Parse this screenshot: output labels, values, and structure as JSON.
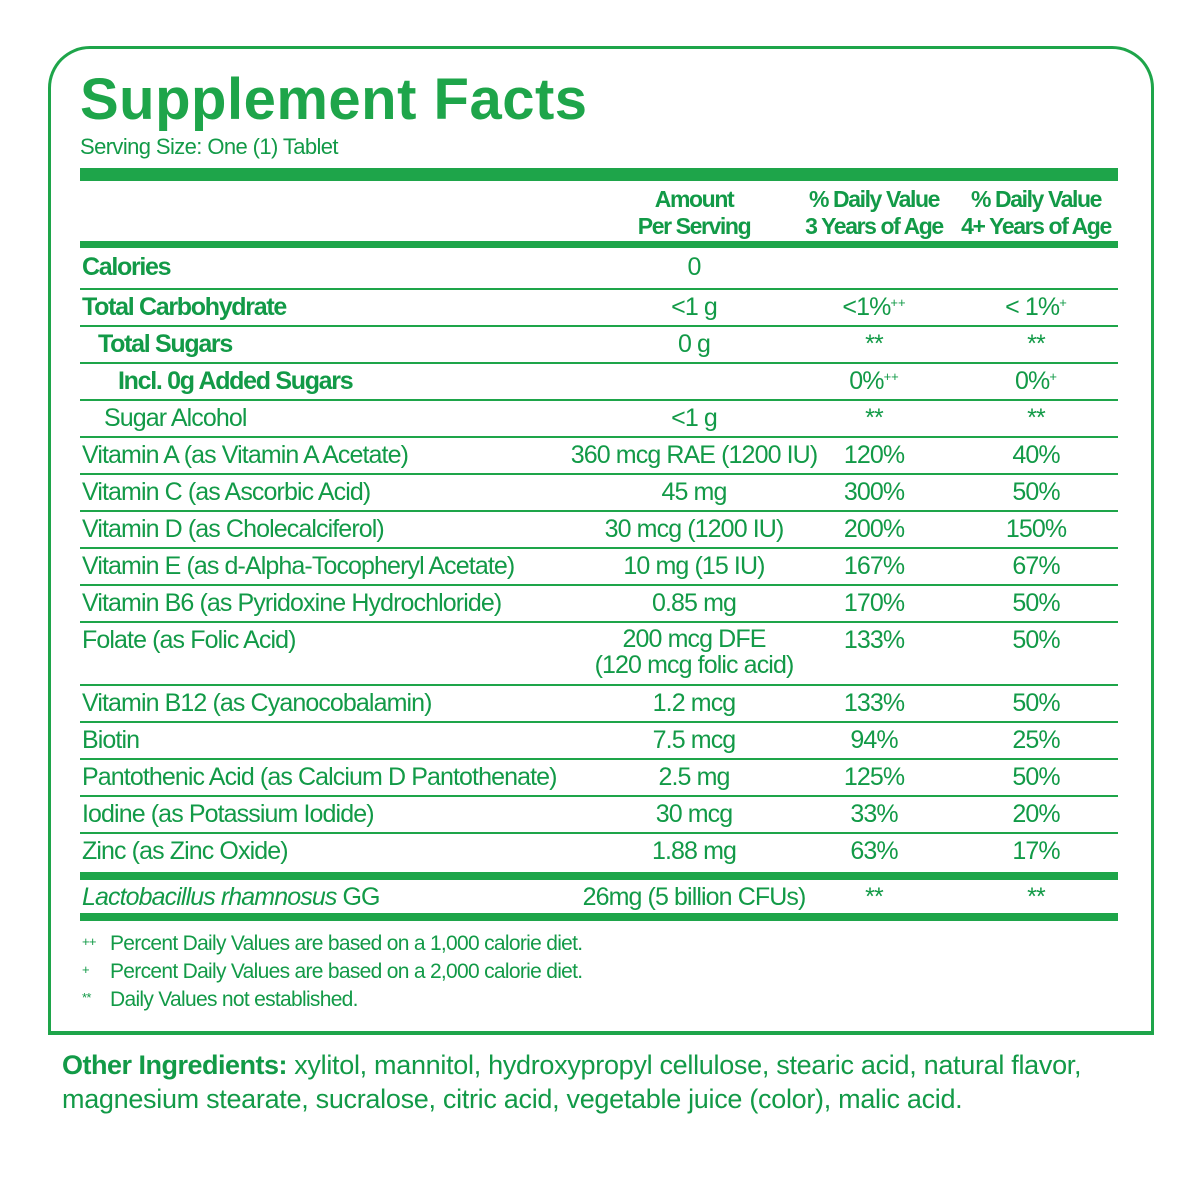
{
  "title": "Supplement Facts",
  "serving_size": "Serving Size: One (1) Tablet",
  "headers": {
    "amount": [
      "Amount",
      "Per Serving"
    ],
    "dv3": [
      "% Daily Value",
      "3 Years of Age"
    ],
    "dv4": [
      "% Daily Value",
      "4+ Years of Age"
    ]
  },
  "rows": [
    {
      "name": "Calories",
      "amount": "0",
      "dv3": "",
      "dv3_mark": "",
      "dv4": "",
      "dv4_mark": ""
    },
    {
      "name": "Total Carbohydrate",
      "amount": "<1 g",
      "dv3": "<1%",
      "dv3_mark": "++",
      "dv4": "< 1%",
      "dv4_mark": "+"
    },
    {
      "name": "Total Sugars",
      "amount": "0 g",
      "dv3": "**",
      "dv3_mark": "",
      "dv4": "**",
      "dv4_mark": ""
    },
    {
      "name": "Incl. 0g Added Sugars",
      "amount": "",
      "dv3": "0%",
      "dv3_mark": "++",
      "dv4": "0%",
      "dv4_mark": "+"
    },
    {
      "name": "Sugar Alcohol",
      "amount": "<1 g",
      "dv3": "**",
      "dv3_mark": "",
      "dv4": "**",
      "dv4_mark": ""
    },
    {
      "name": "Vitamin A (as Vitamin A Acetate)",
      "amount": "360 mcg RAE (1200 IU)",
      "dv3": "120%",
      "dv4": "40%"
    },
    {
      "name": "Vitamin C (as Ascorbic Acid)",
      "amount": "45 mg",
      "dv3": "300%",
      "dv4": "50%"
    },
    {
      "name": "Vitamin D (as Cholecalciferol)",
      "amount": "30 mcg (1200 IU)",
      "dv3": "200%",
      "dv4": "150%"
    },
    {
      "name": "Vitamin E (as d-Alpha-Tocopheryl Acetate)",
      "amount": "10 mg (15 IU)",
      "dv3": "167%",
      "dv4": "67%"
    },
    {
      "name": "Vitamin B6 (as Pyridoxine Hydrochloride)",
      "amount": "0.85 mg",
      "dv3": "170%",
      "dv4": "50%"
    },
    {
      "name": "Folate (as Folic Acid)",
      "amount": "200 mcg DFE",
      "amount2": "(120 mcg folic acid)",
      "dv3": "133%",
      "dv4": "50%"
    },
    {
      "name": "Vitamin B12 (as Cyanocobalamin)",
      "amount": "1.2 mcg",
      "dv3": "133%",
      "dv4": "50%"
    },
    {
      "name": "Biotin",
      "amount": "7.5 mcg",
      "dv3": "94%",
      "dv4": "25%"
    },
    {
      "name": "Pantothenic Acid (as Calcium D Pantothenate)",
      "amount": "2.5 mg",
      "dv3": "125%",
      "dv4": "50%"
    },
    {
      "name": "Iodine (as Potassium Iodide)",
      "amount": "30 mcg",
      "dv3": "33%",
      "dv4": "20%"
    },
    {
      "name": "Zinc (as Zinc Oxide)",
      "amount": "1.88 mg",
      "dv3": "63%",
      "dv4": "17%"
    }
  ],
  "probiotic": {
    "name_italic": "Lactobacillus rhamnosus",
    "name_suffix": "GG",
    "amount": "26mg (5 billion CFUs)",
    "dv3": "**",
    "dv4": "**"
  },
  "footnotes": [
    {
      "symbol": "++",
      "text": "Percent Daily Values are based on a 1,000 calorie diet."
    },
    {
      "symbol": "+",
      "text": "Percent Daily Values are based on a 2,000 calorie diet."
    },
    {
      "symbol": "**",
      "text": "Daily Values not established."
    }
  ],
  "other_ingredients": {
    "label": "Other Ingredients:",
    "text": " xylitol, mannitol, hydroxypropyl cellulose, stearic acid, natural flavor, magnesium stearate, sucralose, citric acid, vegetable juice (color), malic acid."
  },
  "colors": {
    "rule": "#1ea54a",
    "text": "#129a47"
  }
}
